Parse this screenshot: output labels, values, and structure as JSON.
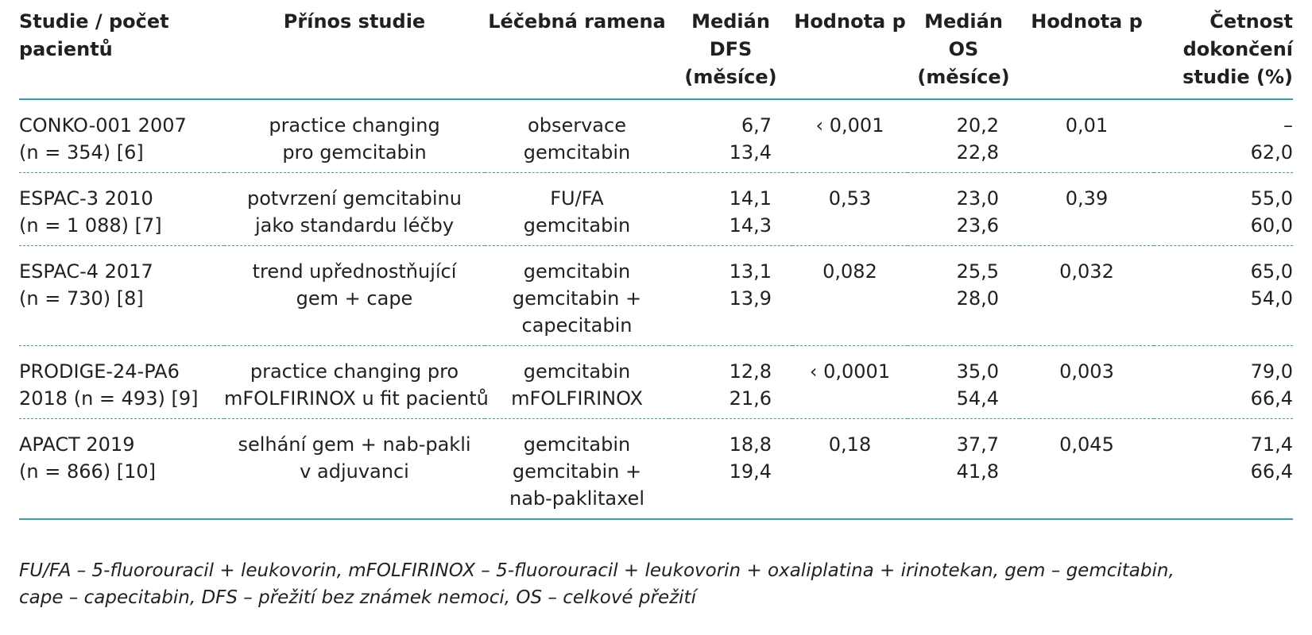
{
  "headers": [
    [
      "Studie / počet",
      "pacientů"
    ],
    [
      "Přínos studie"
    ],
    [
      "Léčebná ramena"
    ],
    [
      "Medián",
      "DFS",
      "(měsíce)"
    ],
    [
      "Hodnota p"
    ],
    [
      "Medián",
      "OS",
      "(měsíce)"
    ],
    [
      "Hodnota p"
    ],
    [
      "Četnost",
      "dokončení",
      "studie (%)"
    ]
  ],
  "rows": [
    {
      "study": [
        "CONKO-001 2007",
        "(n = 354) [6]"
      ],
      "benefit": [
        "practice changing",
        "pro gemcitabin"
      ],
      "arms": [
        "observace",
        "gemcitabin"
      ],
      "dfs": [
        "6,7",
        "13,4"
      ],
      "p_dfs": [
        "‹ 0,001"
      ],
      "os": [
        "20,2",
        "22,8"
      ],
      "p_os": [
        "0,01"
      ],
      "completion": [
        "–",
        "62,0"
      ]
    },
    {
      "study": [
        "ESPAC-3 2010",
        "(n = 1 088) [7]"
      ],
      "benefit": [
        "potvrzení gemcitabinu",
        "jako standardu léčby"
      ],
      "arms": [
        "FU/FA",
        "gemcitabin"
      ],
      "dfs": [
        "14,1",
        "14,3"
      ],
      "p_dfs": [
        "0,53"
      ],
      "os": [
        "23,0",
        "23,6"
      ],
      "p_os": [
        "0,39"
      ],
      "completion": [
        "55,0",
        "60,0"
      ]
    },
    {
      "study": [
        "ESPAC-4  2017",
        "(n = 730) [8]"
      ],
      "benefit": [
        "trend upřednostňující",
        "gem + cape"
      ],
      "arms": [
        "gemcitabin",
        "gemcitabin +",
        "capecitabin"
      ],
      "dfs": [
        "13,1",
        "13,9"
      ],
      "p_dfs": [
        "0,082"
      ],
      "os": [
        "25,5",
        "28,0"
      ],
      "p_os": [
        "0,032"
      ],
      "completion": [
        "65,0",
        "54,0"
      ]
    },
    {
      "study": [
        "PRODIGE-24-PA6",
        "2018 (n = 493) [9]"
      ],
      "benefit": [
        "practice changing pro",
        "mFOLFIRINOX u fit pacientů"
      ],
      "arms": [
        "gemcitabin",
        "mFOLFIRINOX"
      ],
      "dfs": [
        "12,8",
        "21,6"
      ],
      "p_dfs": [
        "‹ 0,0001"
      ],
      "os": [
        "35,0",
        "54,4"
      ],
      "p_os": [
        "0,003"
      ],
      "completion": [
        "79,0",
        "66,4"
      ]
    },
    {
      "study": [
        "APACT 2019",
        "(n = 866) [10]"
      ],
      "benefit": [
        "selhání gem + nab-pakli",
        "v adjuvanci"
      ],
      "arms": [
        "gemcitabin",
        "gemcitabin +",
        "nab-paklitaxel"
      ],
      "dfs": [
        "18,8",
        "19,4"
      ],
      "p_dfs": [
        "0,18"
      ],
      "os": [
        "37,7",
        "41,8"
      ],
      "p_os": [
        "0,045"
      ],
      "completion": [
        "71,4",
        "66,4"
      ]
    }
  ],
  "footnote": [
    "FU/FA – 5-fluorouracil + leukovorin, mFOLFIRINOX – 5-fluorouracil + leukovorin + oxaliplatina + irinotekan, gem – gemcitabin,",
    "cape – capecitabin, DFS – přežití bez známek nemoci, OS – celkové přežití"
  ]
}
